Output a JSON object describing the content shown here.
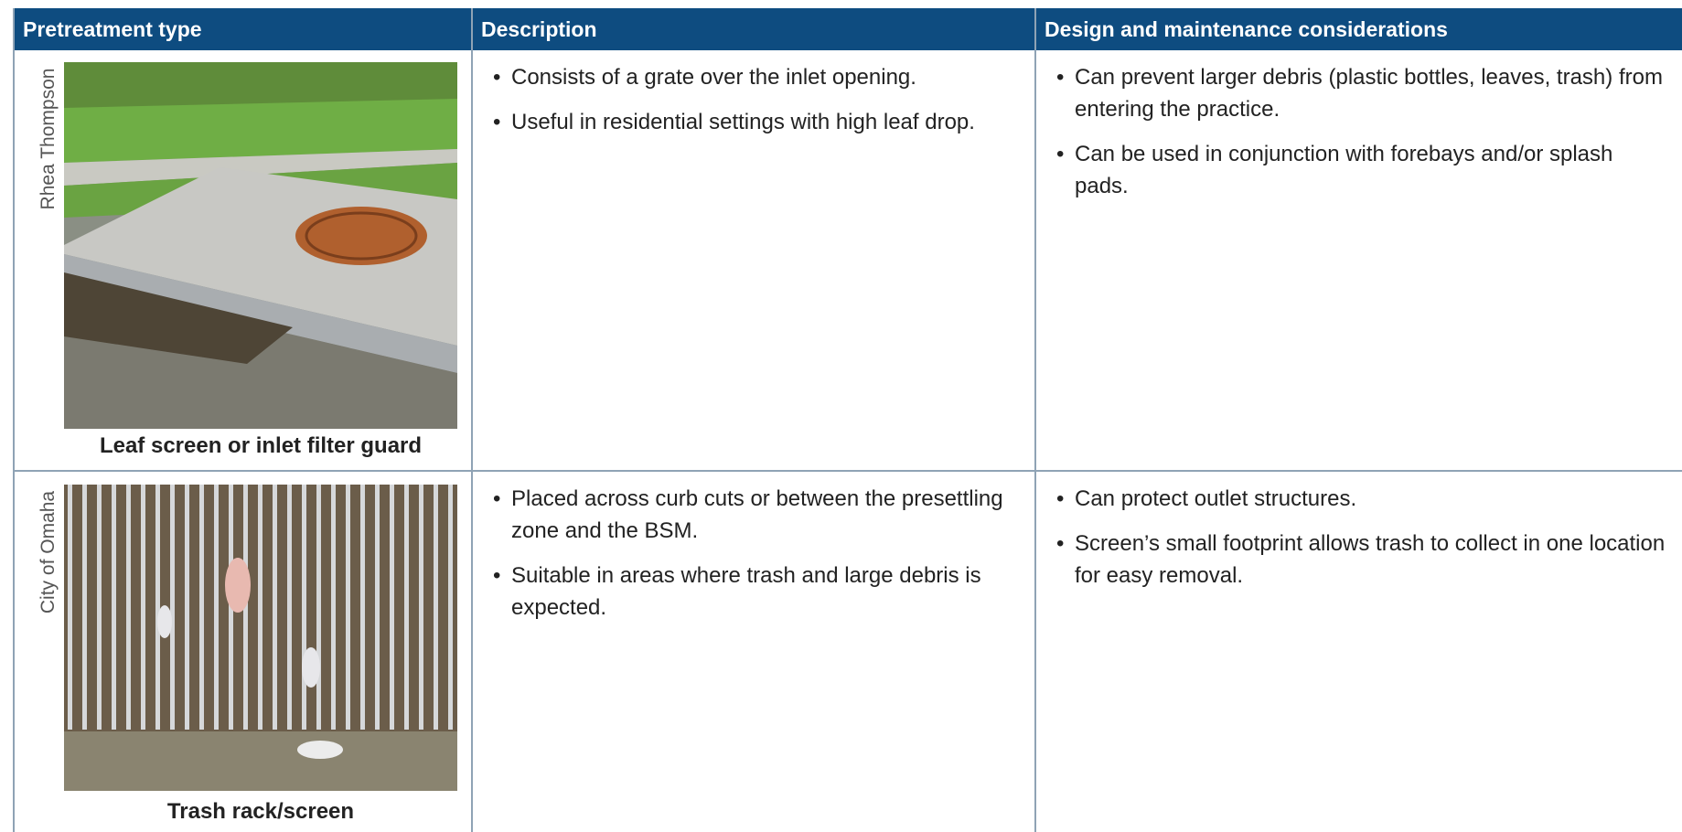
{
  "table": {
    "headers": [
      "Pretreatment type",
      "Description",
      "Design and maintenance considerations"
    ],
    "rows": [
      {
        "photo_credit": "Rhea Thompson",
        "type": "Leaf screen or inlet filter guard",
        "description": [
          "Consists of a grate over the inlet opening.",
          "Useful in residential settings with high leaf drop."
        ],
        "considerations": [
          "Can prevent larger debris (plastic bottles, leaves, trash) from entering the practice.",
          "Can be used in conjunction with forebays and/or splash pads."
        ]
      },
      {
        "photo_credit": "City of Omaha",
        "type": "Trash rack/screen",
        "description": [
          "Placed across curb cuts or between the presettling zone and the BSM.",
          "Suitable in areas where trash and large debris is expected."
        ],
        "considerations": [
          "Can protect outlet structures.",
          "Screen’s small footprint allows trash to collect in one location for easy removal."
        ]
      }
    ]
  }
}
